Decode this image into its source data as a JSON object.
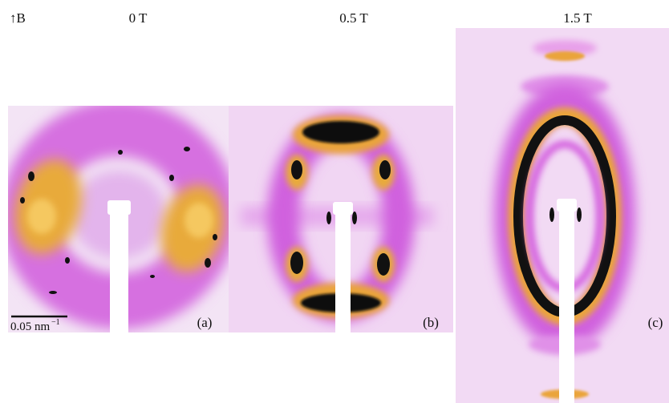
{
  "figure": {
    "field_label": "↑B",
    "panels": [
      {
        "field": "0 T",
        "label": "(a)"
      },
      {
        "field": "0.5 T",
        "label": "(b)"
      },
      {
        "field": "1.5 T",
        "label": "(c)"
      }
    ],
    "scale_bar": {
      "text": "0.05 nm",
      "unit_exponent": "−1"
    }
  }
}
